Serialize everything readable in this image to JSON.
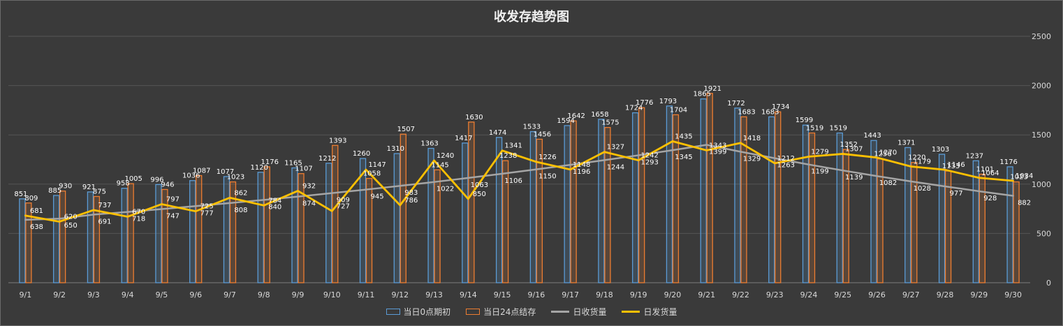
{
  "chart_data": {
    "type": "bar",
    "title": "收发存趋势图",
    "categories": [
      "9/1",
      "9/2",
      "9/3",
      "9/4",
      "9/5",
      "9/6",
      "9/7",
      "9/8",
      "9/9",
      "9/10",
      "9/11",
      "9/12",
      "9/13",
      "9/14",
      "9/15",
      "9/16",
      "9/17",
      "9/18",
      "9/19",
      "9/20",
      "9/21",
      "9/22",
      "9/23",
      "9/24",
      "9/25",
      "9/26",
      "9/27",
      "9/28",
      "9/29",
      "9/30"
    ],
    "ylim": [
      0,
      2500
    ],
    "yticks": [
      0,
      500,
      1000,
      1500,
      2000,
      2500
    ],
    "grid": true,
    "legend_position": "bottom",
    "series": [
      {
        "name": "当日0点期初",
        "kind": "bar",
        "color": "#5b9bd5",
        "values": [
          851,
          885,
          921,
          958,
          996,
          1036,
          1077,
          1120,
          1165,
          1212,
          1260,
          1310,
          1363,
          1417,
          1474,
          1533,
          1594,
          1658,
          1724,
          1793,
          1865,
          1772,
          1683,
          1599,
          1519,
          1443,
          1371,
          1303,
          1237,
          1176
        ]
      },
      {
        "name": "当日24点结存",
        "kind": "bar",
        "color": "#ed7d31",
        "values": [
          809,
          930,
          875,
          1005,
          946,
          1087,
          1023,
          1176,
          1107,
          1393,
          1058,
          1507,
          1145,
          1630,
          1238,
          1456,
          1642,
          1575,
          1776,
          1704,
          1921,
          1683,
          1734,
          1519,
          1352,
          1256,
          1220,
          1133,
          1101,
          1023
        ]
      },
      {
        "name": "日收货量",
        "kind": "line",
        "color": "#a5a5a5",
        "values": [
          638,
          650,
          691,
          718,
          747,
          777,
          808,
          840,
          874,
          909,
          945,
          983,
          1022,
          1063,
          1106,
          1150,
          1196,
          1244,
          1293,
          1345,
          1399,
          1329,
          1263,
          1199,
          1139,
          1082,
          1028,
          977,
          928,
          882
        ]
      },
      {
        "name": "日发货量",
        "kind": "line",
        "color": "#ffc000",
        "values": [
          681,
          620,
          737,
          670,
          797,
          725,
          862,
          784,
          932,
          727,
          1147,
          786,
          1240,
          850,
          1341,
          1226,
          1148,
          1327,
          1242,
          1435,
          1343,
          1418,
          1212,
          1279,
          1307,
          1270,
          1179,
          1146,
          1064,
          1034
        ]
      }
    ]
  }
}
